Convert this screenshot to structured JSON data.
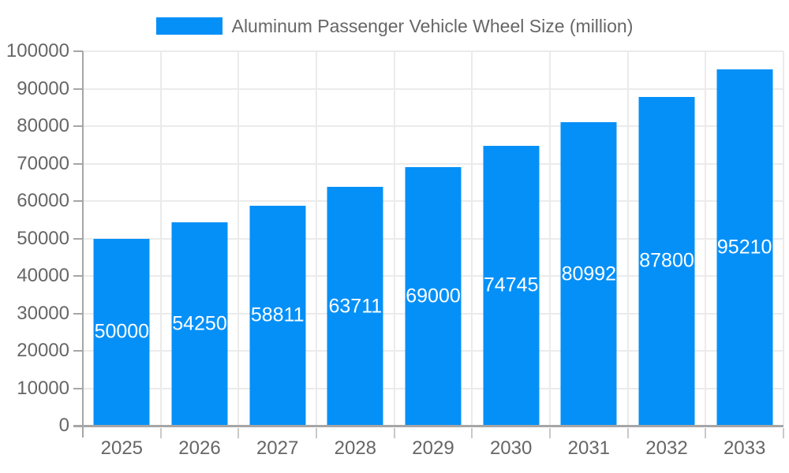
{
  "chart_data": {
    "type": "bar",
    "title": "Aluminum Passenger Vehicle Wheel Size (million)",
    "categories": [
      "2025",
      "2026",
      "2027",
      "2028",
      "2029",
      "2030",
      "2031",
      "2032",
      "2033"
    ],
    "values": [
      50000,
      54250,
      58811,
      63711,
      69000,
      74745,
      80992,
      87800,
      95210
    ],
    "bar_value_labels": [
      "50000",
      "54250",
      "58811",
      "63711",
      "69000",
      "74745",
      "80992",
      "87800",
      "95210"
    ],
    "xlabel": "",
    "ylabel": "",
    "ylim": [
      0,
      100000
    ],
    "y_ticks": [
      0,
      10000,
      20000,
      30000,
      40000,
      50000,
      60000,
      70000,
      80000,
      90000,
      100000
    ],
    "grid": true,
    "legend_position": "top-center",
    "bar_color": "#0590f8",
    "bar_label_color": "#ffffff",
    "axis_text_color": "#666666",
    "gridline_color": "#ebebeb",
    "axis_line_color": "#a6a6a6",
    "background_color": "#ffffff"
  }
}
